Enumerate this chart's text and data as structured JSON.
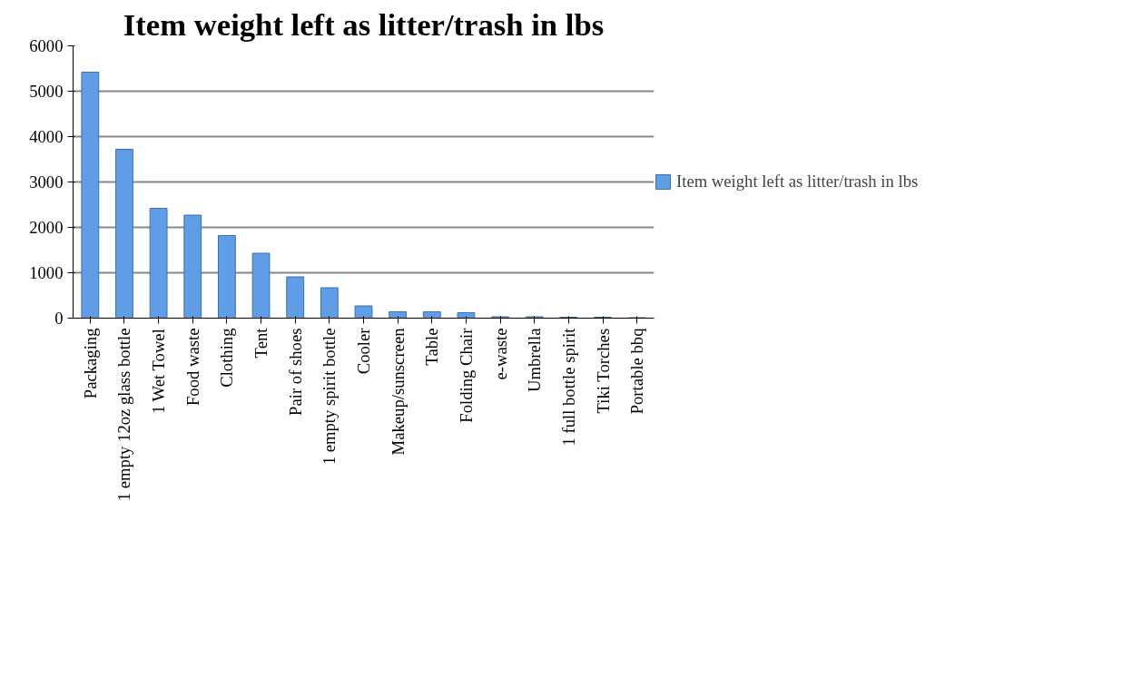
{
  "chart_data": {
    "type": "bar",
    "title": "Item weight left as litter/trash in lbs",
    "categories": [
      "Packaging",
      "1 empty 12oz glass bottle",
      "1 Wet Towel",
      "Food waste",
      "Clothing",
      "Tent",
      "Pair of shoes",
      "1 empty spirit bottle",
      "Cooler",
      "Makeup/sunscreen",
      "Table",
      "Folding Chair",
      "e-waste",
      "Umbrella",
      "1 full bottle spirit",
      "Tiki Torches",
      "Portable bbq"
    ],
    "series": [
      {
        "name": "Item weight left as litter/trash in lbs",
        "color": "#5f9ee6",
        "values": [
          5420,
          3720,
          2420,
          2270,
          1820,
          1430,
          910,
          670,
          270,
          140,
          140,
          120,
          30,
          30,
          20,
          20,
          10
        ]
      }
    ],
    "ylim": [
      0,
      6000
    ],
    "yticks": [
      0,
      1000,
      2000,
      3000,
      4000,
      5000,
      6000
    ],
    "grid": "y",
    "legend": "right"
  }
}
